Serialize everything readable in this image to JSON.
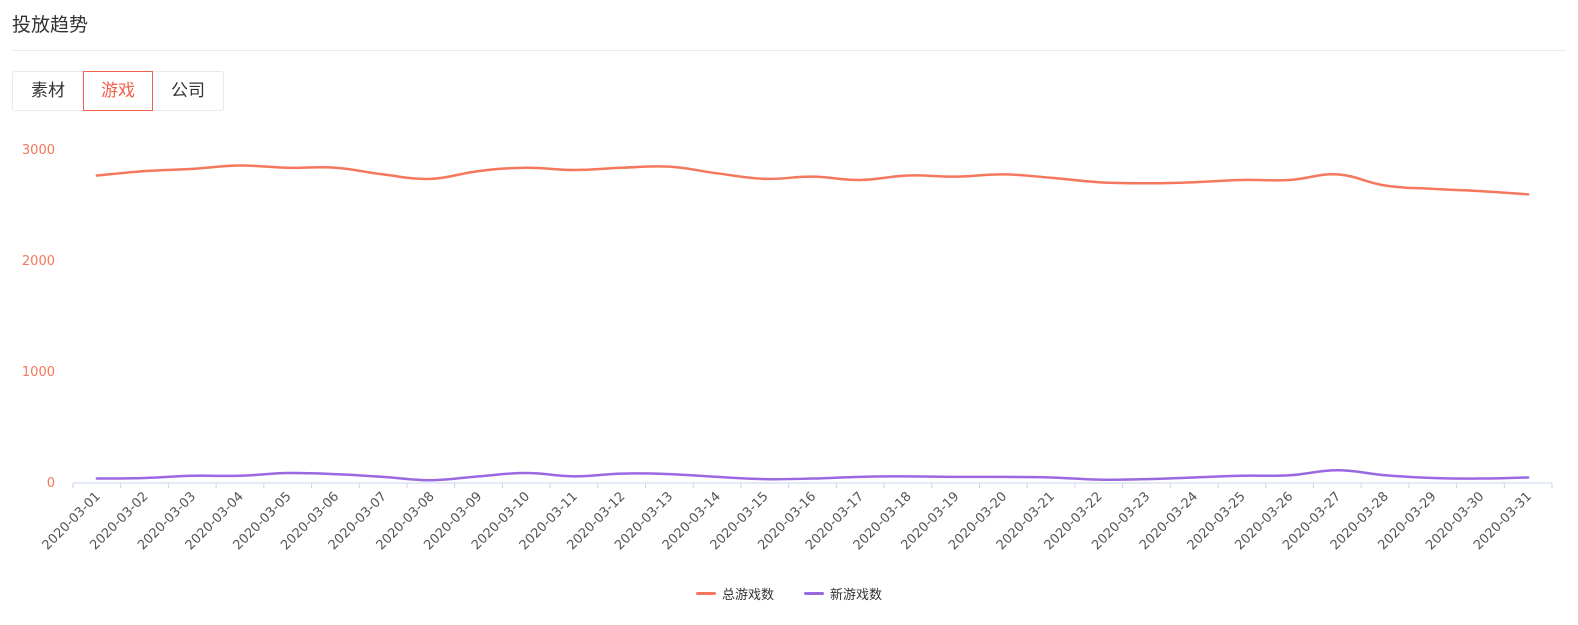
{
  "header": {
    "title": "投放趋势"
  },
  "tabs": [
    {
      "label": "素材",
      "active": false
    },
    {
      "label": "游戏",
      "active": true
    },
    {
      "label": "公司",
      "active": false
    }
  ],
  "colors": {
    "accent": "#f25f4a",
    "series_total": "#f5775d",
    "series_new": "#9a68e0",
    "axis": "#c9d3ef",
    "ytick": "#f5775d"
  },
  "chart_data": {
    "type": "line",
    "title": "",
    "xlabel": "",
    "ylabel": "",
    "ylim": [
      0,
      3000
    ],
    "yticks": [
      0,
      1000,
      2000,
      3000
    ],
    "grid": false,
    "legend_position": "bottom-center",
    "categories": [
      "2020-03-01",
      "2020-03-02",
      "2020-03-03",
      "2020-03-04",
      "2020-03-05",
      "2020-03-06",
      "2020-03-07",
      "2020-03-08",
      "2020-03-09",
      "2020-03-10",
      "2020-03-11",
      "2020-03-12",
      "2020-03-13",
      "2020-03-14",
      "2020-03-15",
      "2020-03-16",
      "2020-03-17",
      "2020-03-18",
      "2020-03-19",
      "2020-03-20",
      "2020-03-21",
      "2020-03-22",
      "2020-03-23",
      "2020-03-24",
      "2020-03-25",
      "2020-03-26",
      "2020-03-27",
      "2020-03-28",
      "2020-03-29",
      "2020-03-30",
      "2020-03-31"
    ],
    "series": [
      {
        "name": "总游戏数",
        "values": [
          2770,
          2810,
          2830,
          2860,
          2840,
          2840,
          2780,
          2740,
          2810,
          2840,
          2820,
          2840,
          2850,
          2790,
          2740,
          2760,
          2730,
          2770,
          2760,
          2780,
          2750,
          2710,
          2700,
          2710,
          2730,
          2730,
          2780,
          2680,
          2650,
          2630,
          2600
        ]
      },
      {
        "name": "新游戏数",
        "values": [
          40,
          45,
          65,
          65,
          90,
          80,
          55,
          25,
          60,
          90,
          60,
          85,
          80,
          55,
          35,
          40,
          55,
          60,
          55,
          55,
          50,
          30,
          35,
          50,
          65,
          70,
          115,
          70,
          45,
          40,
          50
        ]
      }
    ]
  }
}
